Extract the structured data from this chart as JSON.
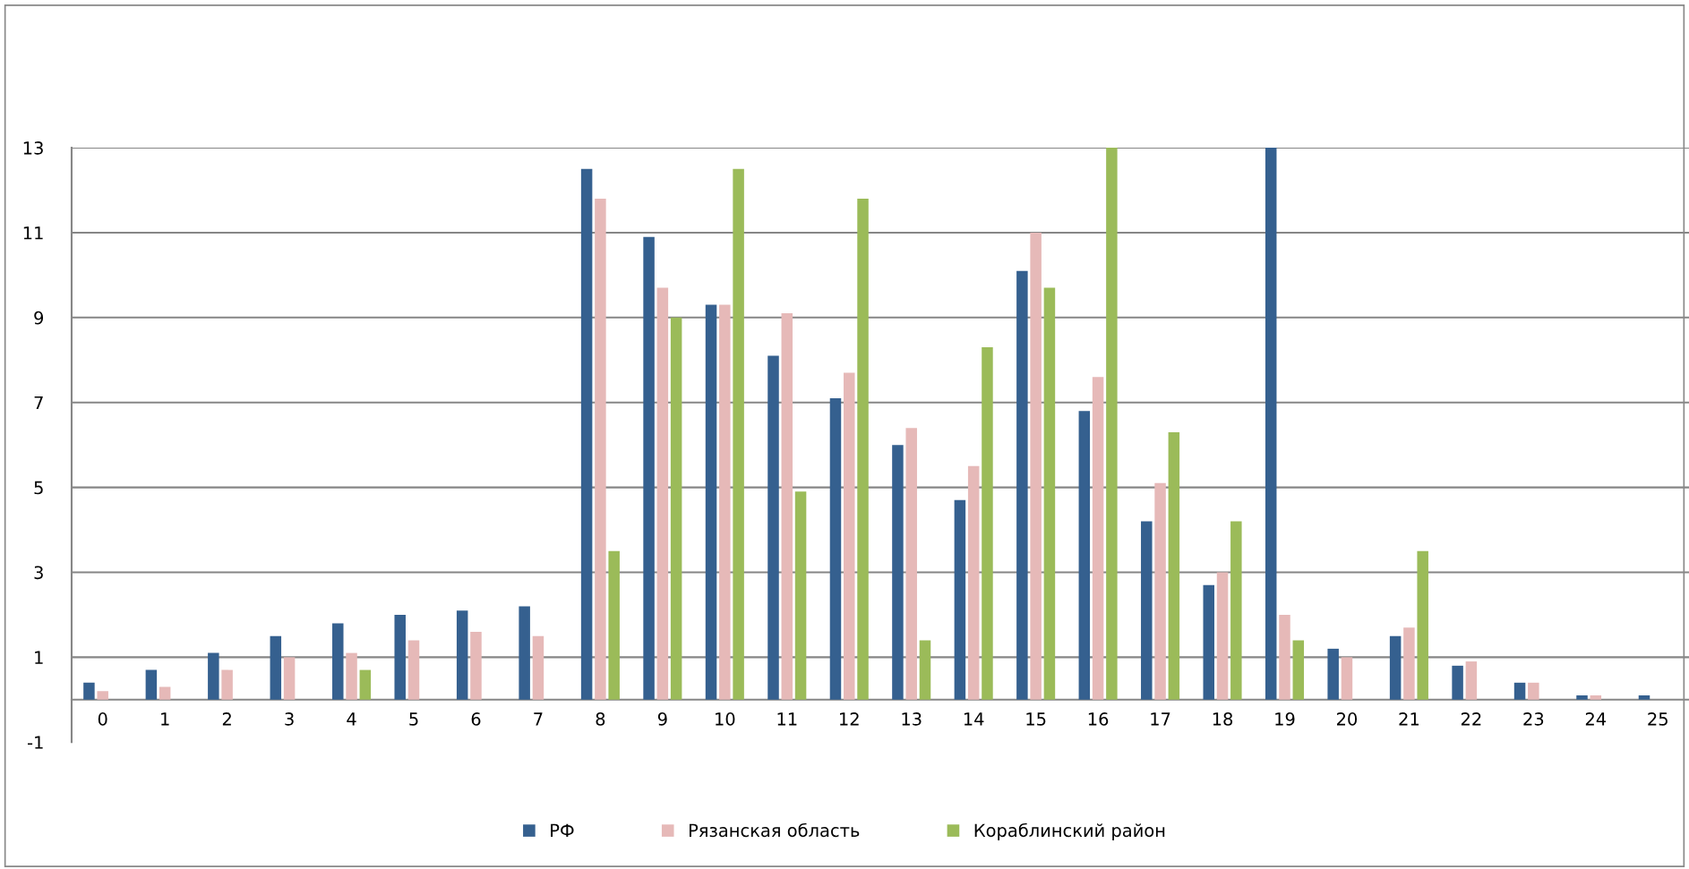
{
  "chart_data": {
    "type": "bar",
    "categories": [
      "0",
      "1",
      "2",
      "3",
      "4",
      "5",
      "6",
      "7",
      "8",
      "9",
      "10",
      "11",
      "12",
      "13",
      "14",
      "15",
      "16",
      "17",
      "18",
      "19",
      "20",
      "21",
      "22",
      "23",
      "24",
      "25"
    ],
    "series": [
      {
        "name": "РФ",
        "color": "#35608f",
        "values": [
          0.4,
          0.7,
          1.1,
          1.5,
          1.8,
          2.0,
          2.1,
          2.2,
          12.5,
          10.9,
          9.3,
          8.1,
          7.1,
          6.0,
          4.7,
          10.1,
          6.8,
          4.2,
          2.7,
          13,
          1.2,
          1.5,
          0.8,
          0.4,
          0.1,
          0.1
        ]
      },
      {
        "name": "Рязанская область",
        "color": "#e6b9b8",
        "values": [
          0.2,
          0.3,
          0.7,
          1.0,
          1.1,
          1.4,
          1.6,
          1.5,
          11.8,
          9.7,
          9.3,
          9.1,
          7.7,
          6.4,
          5.5,
          11.0,
          7.6,
          5.1,
          3.0,
          2.0,
          1.0,
          1.7,
          0.9,
          0.4,
          0.1,
          null
        ]
      },
      {
        "name": "Кораблинский район",
        "color": "#9bbb59",
        "values": [
          null,
          null,
          null,
          null,
          0.7,
          null,
          null,
          null,
          3.5,
          9.0,
          12.5,
          4.9,
          11.8,
          1.4,
          8.3,
          9.7,
          13,
          6.3,
          4.2,
          1.4,
          null,
          3.5,
          null,
          null,
          null,
          null
        ]
      }
    ],
    "ylim": [
      -1,
      13
    ],
    "yticks": [
      -1,
      1,
      3,
      5,
      7,
      9,
      11,
      13
    ],
    "grid": "y",
    "legend": "bottom"
  }
}
